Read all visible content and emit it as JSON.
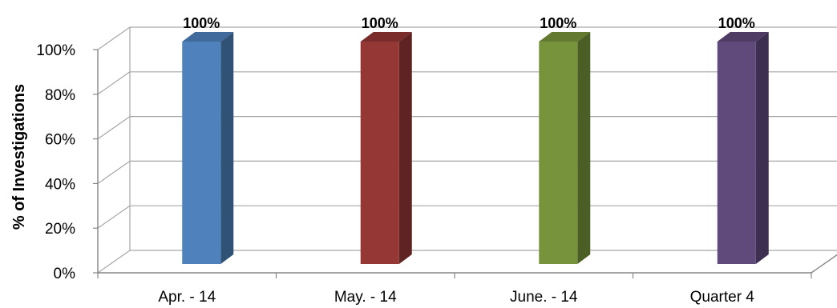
{
  "chart_data": {
    "type": "bar",
    "categories": [
      "Apr. - 14",
      "May. - 14",
      "June. - 14",
      "Quarter 4"
    ],
    "values": [
      100,
      100,
      100,
      100
    ],
    "data_labels": [
      "100%",
      "100%",
      "100%",
      "100%"
    ],
    "ylabel": "% of Investigations",
    "xlabel": "",
    "ylim": [
      0,
      100
    ],
    "yticks": [
      "0%",
      "20%",
      "40%",
      "60%",
      "80%",
      "100%"
    ],
    "grid": true,
    "legend": "none",
    "three_d": true,
    "colors": {
      "bars": [
        "#4f81bd",
        "#953735",
        "#77933c",
        "#604a7b"
      ],
      "bar_sides": [
        "#2f5275",
        "#5e2322",
        "#4b5e26",
        "#3c2f4f"
      ],
      "bar_tops": [
        "#3f6a9b",
        "#7a2c2b",
        "#62792f",
        "#4e3c65"
      ],
      "grid": "#a6a6a6",
      "axis": "#868686"
    }
  }
}
